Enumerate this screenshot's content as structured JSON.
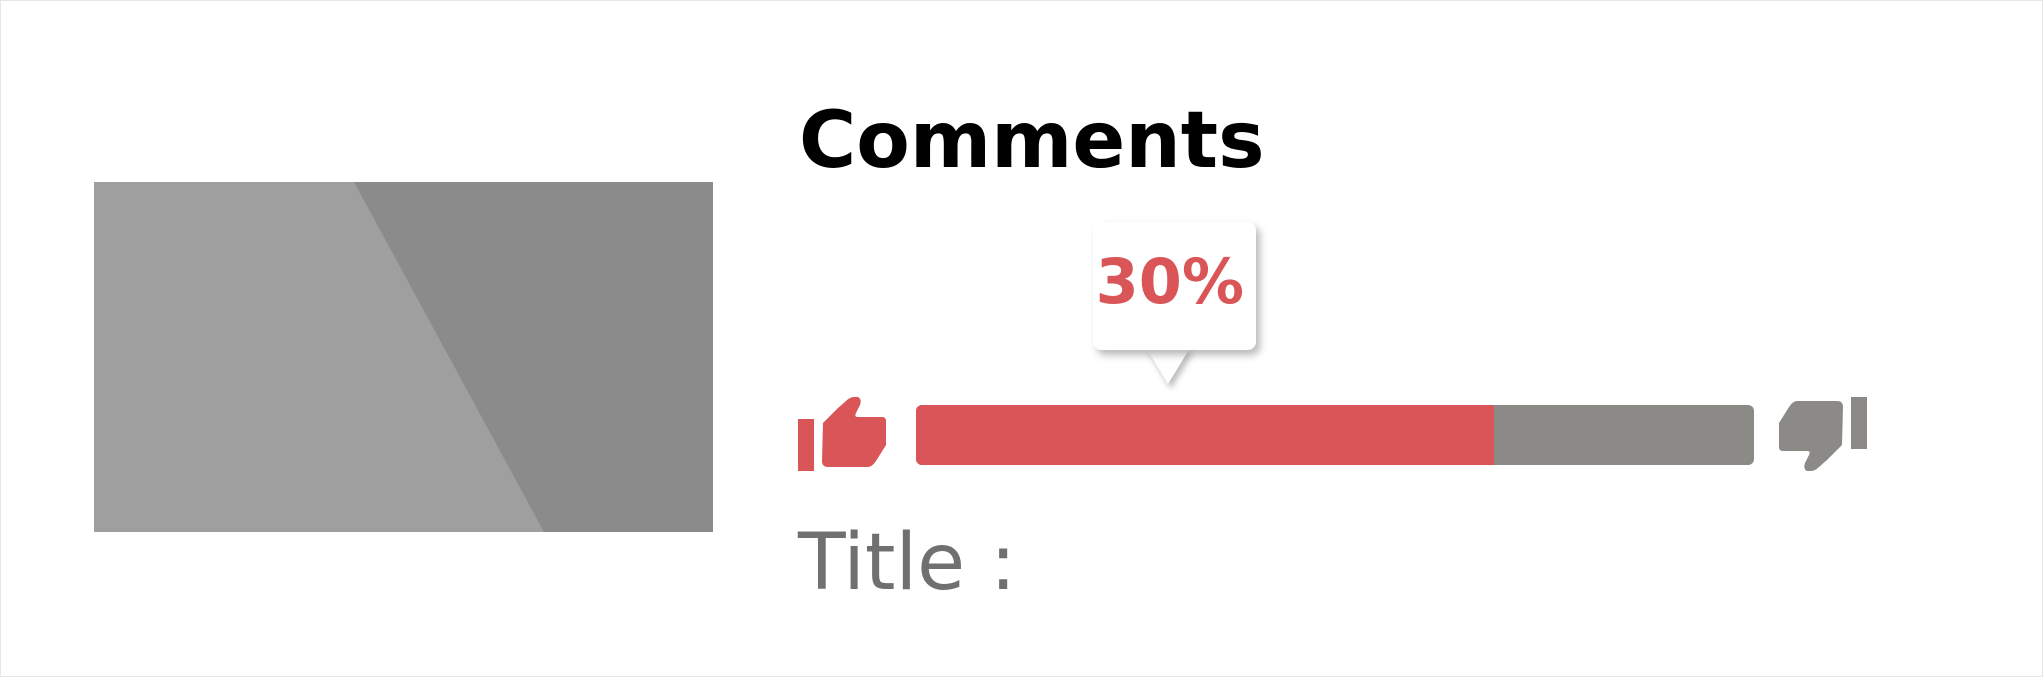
{
  "card": {
    "heading": "Comments",
    "title_label": "Title :"
  },
  "rating": {
    "percent_text": "30%",
    "fill_fraction": 0.69,
    "like_icon": "thumbs-up-icon",
    "dislike_icon": "thumbs-down-icon"
  },
  "colors": {
    "accent": "#d95557",
    "neutral_bar": "#8c8a87",
    "heading_text": "#000000",
    "label_text": "#707070",
    "thumbnail_light": "#9f9f9f",
    "thumbnail_dark": "#8b8b8b"
  }
}
